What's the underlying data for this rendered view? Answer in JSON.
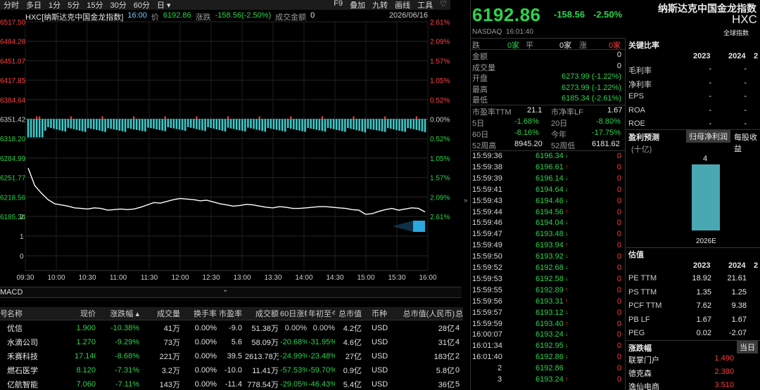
{
  "toolbar": {
    "left": [
      "分时",
      "多日",
      "1分",
      "5分",
      "15分",
      "30分",
      "60分",
      "日 ▾"
    ],
    "right": [
      "F9",
      "叠加",
      "九转",
      "画线",
      "工具",
      "♡"
    ]
  },
  "chart_header": {
    "code": "HXC[纳斯达克中国金龙指数]",
    "time": "16:00",
    "price_label": "价",
    "price": "6192.86",
    "change_label": "涨跌",
    "change": "-158.56(-2.50%)",
    "turnover_label": "成交金额",
    "turnover": "0",
    "date": "2026/06/16"
  },
  "chart_data": {
    "type": "line",
    "price_ticks": [
      "6517.50",
      "6484.28",
      "6451.07",
      "6417.85",
      "6384.64",
      "6351.42",
      "6318.20",
      "6284.99",
      "6251.77",
      "6218.56",
      "6185.34"
    ],
    "pct_ticks": [
      "2.61%",
      "2.09%",
      "1.57%",
      "1.05%",
      "0.52%",
      "0.00%",
      "0.52%",
      "1.05%",
      "1.57%",
      "2.09%",
      "2.61%"
    ],
    "volume_ticks": [
      "2",
      "1",
      "0"
    ],
    "time_ticks": [
      "09:30",
      "10:00",
      "10:30",
      "11:00",
      "11:30",
      "12:00",
      "12:30",
      "13:00",
      "13:30",
      "14:00",
      "14:30",
      "15:00",
      "15:30",
      "16:00"
    ],
    "prev_close": 6351.42,
    "ylim": [
      6185.34,
      6517.5
    ],
    "price_series": [
      6268,
      6238,
      6225,
      6214,
      6207,
      6205,
      6203,
      6200,
      6199,
      6198,
      6200,
      6199,
      6196,
      6197,
      6198,
      6197,
      6198,
      6201,
      6205,
      6209,
      6208,
      6211,
      6214,
      6216,
      6215,
      6214,
      6212,
      6213,
      6210,
      6207,
      6205,
      6203,
      6204,
      6206,
      6205,
      6203,
      6201,
      6200,
      6202,
      6201,
      6199,
      6199,
      6200,
      6201,
      6202,
      6202,
      6201,
      6200,
      6199,
      6197,
      6196,
      6189,
      6190,
      6194,
      6197,
      6199,
      6196,
      6198,
      6200,
      6199,
      6193
    ]
  },
  "macd": {
    "label": "MACD",
    "chevron": "⌄"
  },
  "table": {
    "headers": [
      "号",
      "名称",
      "现价",
      "涨跌幅 ▴",
      "成交量",
      "换手率",
      "市盈率",
      "成交额",
      "60日涨幅",
      "年初至今",
      "总市值",
      "币种",
      "总市值(人民币)",
      "总"
    ],
    "rows": [
      [
        "",
        "优信",
        "1.900",
        "-10.38%",
        "41万",
        "0.00%",
        "-9.0",
        "51.38万",
        "0.00%",
        "0.00%",
        "4.2亿",
        "USD",
        "28亿",
        "4"
      ],
      [
        "",
        "水滴公司",
        "1.270",
        "-9.29%",
        "73万",
        "0.00%",
        "5.6",
        "58.09万",
        "-20.68%",
        "-31.95%",
        "4.6亿",
        "USD",
        "31亿",
        "4"
      ],
      [
        "",
        "禾赛科技",
        "17.140",
        "-8.68%",
        "221万",
        "0.00%",
        "39.5",
        "2613.78万",
        "-24.99%",
        "-23.48%",
        "27亿",
        "USD",
        "183亿",
        "2"
      ],
      [
        "",
        "燃石医学",
        "8.120",
        "-7.31%",
        "3.2万",
        "0.00%",
        "-10.0",
        "11.41万",
        "-57.53%",
        "-59.70%",
        "0.9亿",
        "USD",
        "5.8亿",
        "0"
      ],
      [
        "",
        "亿航智能",
        "7.060",
        "-7.11%",
        "143万",
        "0.00%",
        "-11.4",
        "778.54万",
        "-29.05%",
        "-46.43%",
        "5.4亿",
        "USD",
        "36亿",
        "5"
      ]
    ]
  },
  "quote": {
    "price": "6192.86",
    "change": "-158.56",
    "change_pct": "-2.50%",
    "exchange": "NASDAQ",
    "time": "16:01:40",
    "name": "纳斯达克中国金龙指数",
    "code": "HXC",
    "global_index_label": "全球指数",
    "down_label": "跌",
    "down_val": "0家",
    "flat_label": "平",
    "flat_val": "0家",
    "up_label": "涨",
    "up_val": "0家",
    "stats": [
      {
        "label": "金额",
        "value": "0"
      },
      {
        "label": "成交量",
        "value": "0"
      },
      {
        "label": "开盘",
        "value": "6273.99 (-1.22%)"
      },
      {
        "label": "最高",
        "value": "6273.99 (-1.22%)"
      },
      {
        "label": "最低",
        "value": "6185.34 (-2.61%)"
      }
    ],
    "pe_label": "市盈率TTM",
    "pe_val": "21.1",
    "pb_label": "市净率LF",
    "pb_val": "1.67",
    "d5_label": "5日",
    "d5_val": "-1.68%",
    "d20_label": "20日",
    "d20_val": "-8.80%",
    "d60_label": "60日",
    "d60_val": "-8.16%",
    "ytd_label": "今年",
    "ytd_val": "-17.75%",
    "high52_label": "52周高",
    "high52_val": "8945.20",
    "low52_label": "52周低",
    "low52_val": "6181.62"
  },
  "ticks": [
    [
      "15:59:36",
      "6196.34",
      "down",
      "0"
    ],
    [
      "15:59:38",
      "6196.61",
      "up",
      "0"
    ],
    [
      "15:59:39",
      "6196.14",
      "down",
      "0"
    ],
    [
      "15:59:41",
      "6194.64",
      "down",
      "0"
    ],
    [
      "15:59:43",
      "6194.46",
      "down",
      "0"
    ],
    [
      "15:59:44",
      "6194.56",
      "up",
      "0"
    ],
    [
      "15:59:46",
      "6194.04",
      "down",
      "0"
    ],
    [
      "15:59:47",
      "6193.48",
      "down",
      "0"
    ],
    [
      "15:59:49",
      "6193.94",
      "up",
      "0"
    ],
    [
      "15:59:50",
      "6193.92",
      "down",
      "0"
    ],
    [
      "15:59:52",
      "6192.68",
      "down",
      "0"
    ],
    [
      "15:59:53",
      "6192.58",
      "down",
      "0"
    ],
    [
      "15:59:55",
      "6192.89",
      "up",
      "0"
    ],
    [
      "15:59:56",
      "6193.31",
      "up",
      "0"
    ],
    [
      "15:59:57",
      "6193.12",
      "down",
      "0"
    ],
    [
      "15:59:59",
      "6193.40",
      "up",
      "0"
    ],
    [
      "16:00:07",
      "6193.24",
      "down",
      "0"
    ],
    [
      "16:01:34",
      "6192.95",
      "down",
      "0"
    ],
    [
      "16:01:40",
      "6192.86",
      "down",
      "0"
    ],
    [
      "2",
      "6192.86",
      "",
      "0"
    ],
    [
      "3",
      "6193.24",
      "up",
      "0"
    ]
  ],
  "ratios": {
    "title": "关键比率",
    "years": [
      "2023",
      "2024",
      "2"
    ],
    "rows": [
      {
        "label": "毛利率",
        "v1": "-",
        "v2": "-"
      },
      {
        "label": "净利率",
        "v1": "-",
        "v2": "-"
      },
      {
        "label": "EPS",
        "v1": "-",
        "v2": "-"
      },
      {
        "label": "ROA",
        "v1": "-",
        "v2": "-"
      },
      {
        "label": "ROE",
        "v1": "-",
        "v2": "-"
      }
    ]
  },
  "forecast": {
    "title": "盈利预测",
    "tab_active": "归母净利润",
    "tab_other": "每股收益",
    "unit": "(十亿)",
    "bar_value": 4,
    "bar_label": "4",
    "bar_year": "2026E"
  },
  "valuation": {
    "title": "估值",
    "years": [
      "2023",
      "2024",
      "2"
    ],
    "rows": [
      {
        "label": "PE TTM",
        "v1": "18.92",
        "v2": "21.61"
      },
      {
        "label": "PS TTM",
        "v1": "1.35",
        "v2": "1.25"
      },
      {
        "label": "PCF TTM",
        "v1": "7.62",
        "v2": "9.38"
      },
      {
        "label": "PB LF",
        "v1": "1.67",
        "v2": "1.67"
      },
      {
        "label": "PEG",
        "v1": "0.02",
        "v2": "-2.07"
      }
    ]
  },
  "gainers": {
    "title": "涨跌幅",
    "tab": "当日",
    "rows": [
      {
        "name": "联掌门户",
        "value": "1.490"
      },
      {
        "name": "德克森",
        "value": "2.380"
      },
      {
        "name": "逸仙电商",
        "value": "3.510"
      }
    ]
  },
  "colors": {
    "up": "#ff3b3b",
    "down": "#2bd44a",
    "volume": "#3ec8c8",
    "line": "#ffffff"
  }
}
